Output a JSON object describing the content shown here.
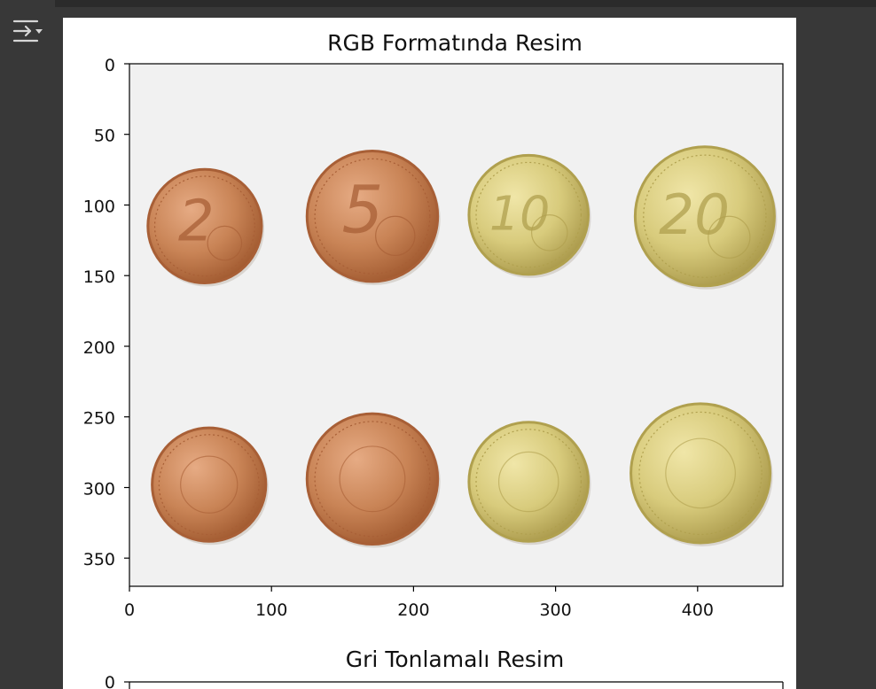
{
  "output_toggle_icon": "output-collapse-icon",
  "colors": {
    "copper": "#c98456",
    "copper_dark": "#a85f36",
    "gold": "#d8cb7c",
    "gold_dark": "#b0a04e",
    "photo_bg": "#f1f1f1"
  },
  "chart_data": [
    {
      "type": "image",
      "title": "RGB Formatında Resim",
      "xlim": [
        0,
        460
      ],
      "ylim": [
        370,
        0
      ],
      "xticks": [
        0,
        100,
        200,
        300,
        400
      ],
      "xtick_labels": [
        "0",
        "100",
        "200",
        "300",
        "400"
      ],
      "yticks": [
        0,
        50,
        100,
        150,
        200,
        250,
        300,
        350
      ],
      "ytick_labels": [
        "0",
        "50",
        "100",
        "150",
        "200",
        "250",
        "300",
        "350"
      ],
      "coins": [
        {
          "label": "2",
          "metal": "copper",
          "cx": 53,
          "cy": 115,
          "r": 40
        },
        {
          "label": "5",
          "metal": "copper",
          "cx": 171,
          "cy": 108,
          "r": 46
        },
        {
          "label": "10",
          "metal": "gold",
          "cx": 281,
          "cy": 107,
          "r": 42
        },
        {
          "label": "20",
          "metal": "gold",
          "cx": 405,
          "cy": 108,
          "r": 49
        },
        {
          "label": "",
          "metal": "copper",
          "cx": 56,
          "cy": 298,
          "r": 40
        },
        {
          "label": "",
          "metal": "copper",
          "cx": 171,
          "cy": 294,
          "r": 46
        },
        {
          "label": "",
          "metal": "gold",
          "cx": 281,
          "cy": 296,
          "r": 42
        },
        {
          "label": "",
          "metal": "gold",
          "cx": 402,
          "cy": 290,
          "r": 49
        }
      ]
    },
    {
      "type": "image",
      "title": "Gri Tonlamalı Resim",
      "yticks": [
        0
      ],
      "ytick_labels": [
        "0"
      ]
    }
  ]
}
